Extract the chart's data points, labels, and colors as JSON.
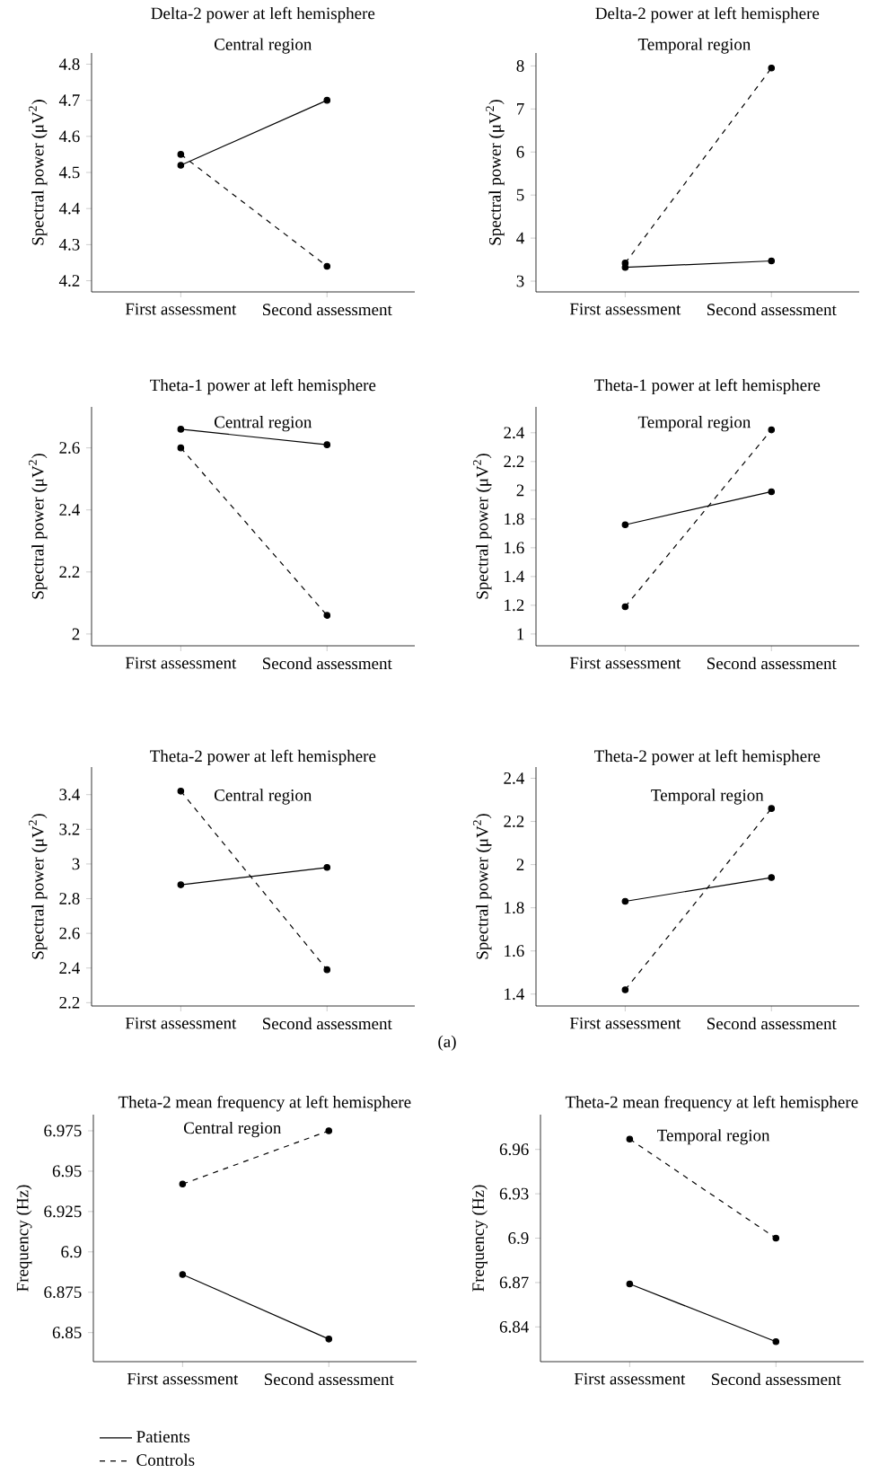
{
  "chart_data": [
    {
      "type": "line",
      "title": "Delta-2 power at left hemisphere",
      "subtitle": "Central region",
      "ylabel": "Spectral power (μV$^{2}$)",
      "categories": [
        "First assessment",
        "Second assessment"
      ],
      "ylim": [
        4.169,
        4.831
      ],
      "yticks": [
        4.2,
        4.3,
        4.4,
        4.5,
        4.6,
        4.7,
        4.8
      ],
      "marker": "circle",
      "series": [
        {
          "color": "#000000",
          "line_style": "solid",
          "values": [
            4.52,
            4.7
          ]
        },
        {
          "color": "#000000",
          "line_style": "dashed",
          "values": [
            4.55,
            4.24
          ]
        }
      ]
    },
    {
      "type": "line",
      "title": "Delta-2 power at left hemisphere",
      "subtitle": "Temporal region",
      "ylabel": "Spectral power (μV$^{2}$)",
      "categories": [
        "First assessment",
        "Second assessment"
      ],
      "ylim": [
        2.75,
        8.3
      ],
      "yticks": [
        3,
        4,
        5,
        6,
        7,
        8
      ],
      "marker": "circle",
      "series": [
        {
          "color": "#000000",
          "line_style": "solid",
          "values": [
            3.32,
            3.47
          ]
        },
        {
          "color": "#000000",
          "line_style": "dashed",
          "values": [
            3.42,
            7.95
          ]
        }
      ]
    },
    {
      "type": "line",
      "title": "Theta-1 power at left hemisphere",
      "subtitle": "Central region",
      "ylabel": "Spectral power (μV$^{2}$)",
      "categories": [
        "First assessment",
        "Second assessment"
      ],
      "ylim": [
        1.962,
        2.732
      ],
      "yticks": [
        2,
        2.2,
        2.4,
        2.6
      ],
      "marker": "circle",
      "series": [
        {
          "color": "#000000",
          "line_style": "solid",
          "values": [
            2.66,
            2.61
          ]
        },
        {
          "color": "#000000",
          "line_style": "dashed",
          "values": [
            2.6,
            2.06
          ]
        }
      ]
    },
    {
      "type": "line",
      "title": "Theta-1 power at left hemisphere",
      "subtitle": "Temporal region",
      "ylabel": "Spectral power (μV$^{2}$)",
      "categories": [
        "First assessment",
        "Second assessment"
      ],
      "ylim": [
        0.918,
        2.58
      ],
      "yticks": [
        1,
        1.2,
        1.4,
        1.6,
        1.8,
        2,
        2.2,
        2.4
      ],
      "marker": "circle",
      "series": [
        {
          "color": "#000000",
          "line_style": "solid",
          "values": [
            1.76,
            1.99
          ]
        },
        {
          "color": "#000000",
          "line_style": "dashed",
          "values": [
            1.19,
            2.42
          ]
        }
      ]
    },
    {
      "type": "line",
      "title": "Theta-2 power at left hemisphere",
      "subtitle": "Central region",
      "ylabel": "Spectral power (μV$^{2}$)",
      "categories": [
        "First assessment",
        "Second assessment"
      ],
      "ylim": [
        2.181,
        3.559
      ],
      "yticks": [
        2.2,
        2.4,
        2.6,
        2.8,
        3,
        3.2,
        3.4
      ],
      "marker": "circle",
      "annotations": [
        "(a)"
      ],
      "series": [
        {
          "color": "#000000",
          "line_style": "solid",
          "values": [
            2.88,
            2.98
          ]
        },
        {
          "color": "#000000",
          "line_style": "dashed",
          "values": [
            3.42,
            2.39
          ]
        }
      ]
    },
    {
      "type": "line",
      "title": "Theta-2 power at left hemisphere",
      "subtitle": "Temporal region",
      "ylabel": "Spectral power (μV$^{2}$)",
      "categories": [
        "First assessment",
        "Second assessment"
      ],
      "ylim": [
        1.345,
        2.452
      ],
      "yticks": [
        1.4,
        1.6,
        1.8,
        2,
        2.2,
        2.4
      ],
      "marker": "circle",
      "series": [
        {
          "color": "#000000",
          "line_style": "solid",
          "values": [
            1.83,
            1.94
          ]
        },
        {
          "color": "#000000",
          "line_style": "dashed",
          "values": [
            1.42,
            2.26
          ]
        }
      ]
    },
    {
      "type": "line",
      "title": "Theta-2 mean frequency at left hemisphere",
      "subtitle": "Central region",
      "ylabel": "Frequency (Hz)",
      "categories": [
        "First assessment",
        "Second assessment"
      ],
      "ylim": [
        6.832,
        6.985
      ],
      "yticks": [
        6.85,
        6.875,
        6.9,
        6.925,
        6.95,
        6.975
      ],
      "marker": "circle",
      "legend": "bottom",
      "series": [
        {
          "name": "Patients",
          "color": "#000000",
          "line_style": "solid",
          "values": [
            6.886,
            6.846
          ]
        },
        {
          "name": "Controls",
          "color": "#000000",
          "line_style": "dashed",
          "values": [
            6.942,
            6.975
          ]
        }
      ]
    },
    {
      "type": "line",
      "title": "Theta-2 mean frequency at left hemisphere",
      "subtitle": "Temporal region",
      "ylabel": "Frequency (Hz)",
      "categories": [
        "First assessment",
        "Second assessment"
      ],
      "ylim": [
        6.8165,
        6.9835
      ],
      "yticks": [
        6.84,
        6.87,
        6.9,
        6.93,
        6.96
      ],
      "marker": "circle",
      "series": [
        {
          "color": "#000000",
          "line_style": "solid",
          "values": [
            6.869,
            6.83
          ]
        },
        {
          "color": "#000000",
          "line_style": "dashed",
          "values": [
            6.967,
            6.9
          ]
        }
      ]
    }
  ]
}
